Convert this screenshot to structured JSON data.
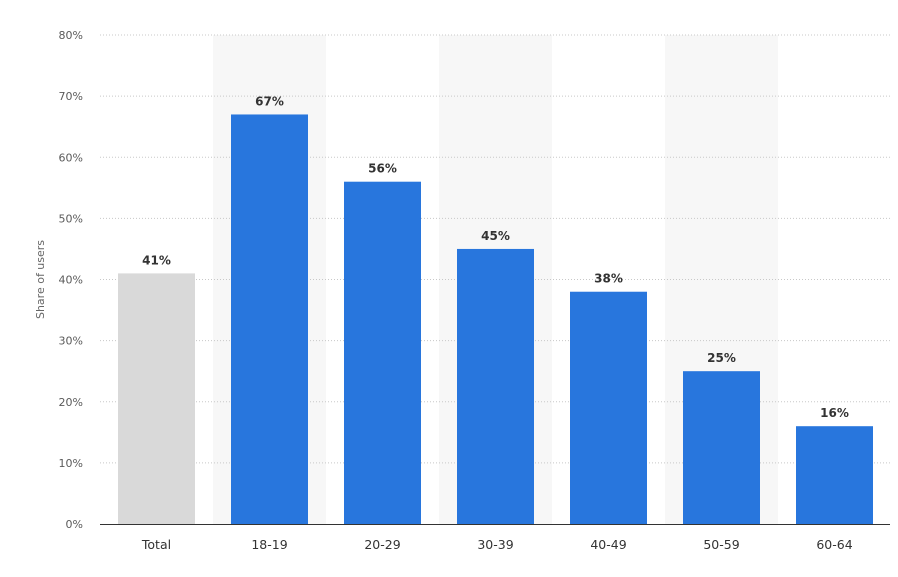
{
  "chart_data": {
    "type": "bar",
    "title": "",
    "xlabel": "",
    "ylabel": "Share of users",
    "ylim": [
      0,
      80
    ],
    "y_ticks": [
      0,
      10,
      20,
      30,
      40,
      50,
      60,
      70,
      80
    ],
    "y_tick_labels": [
      "0%",
      "10%",
      "20%",
      "30%",
      "40%",
      "50%",
      "60%",
      "70%",
      "80%"
    ],
    "categories": [
      "Total",
      "18-19",
      "20-29",
      "30-39",
      "40-49",
      "50-59",
      "60-64"
    ],
    "values": [
      41,
      67,
      56,
      45,
      38,
      25,
      16
    ],
    "data_labels": [
      "41%",
      "67%",
      "56%",
      "45%",
      "38%",
      "25%",
      "16%"
    ],
    "bar_colors": [
      "#d9d9d9",
      "#2876dd",
      "#2876dd",
      "#2876dd",
      "#2876dd",
      "#2876dd",
      "#2876dd"
    ],
    "grid": true,
    "grid_style": "dotted",
    "alternating_column_shading": true,
    "column_shade_color": "#f7f7f7",
    "legend": "none"
  }
}
